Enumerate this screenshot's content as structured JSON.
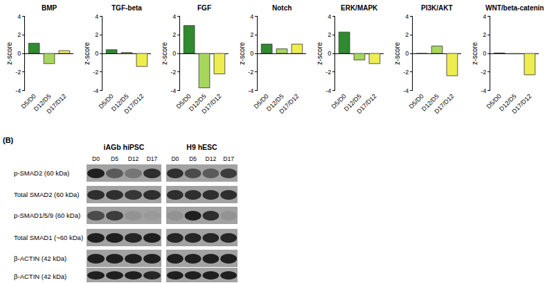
{
  "chart_data": [
    {
      "type": "bar",
      "title": "BMP",
      "ylabel": "z-score",
      "categories": [
        "D5/D0",
        "D12/D5",
        "D17/D12"
      ],
      "values": [
        1.1,
        -1.1,
        0.3
      ],
      "colors": [
        "#2e8b2e",
        "#a6d65c",
        "#eded4f"
      ],
      "ylim": [
        -4,
        4
      ],
      "yticks": [
        -4,
        -2,
        0,
        2,
        4
      ]
    },
    {
      "type": "bar",
      "title": "TGF-beta",
      "ylabel": "z-score",
      "categories": [
        "D5/D0",
        "D12/D5",
        "D17/D12"
      ],
      "values": [
        0.4,
        0.1,
        -1.4
      ],
      "colors": [
        "#2e8b2e",
        "#a6d65c",
        "#eded4f"
      ],
      "ylim": [
        -4,
        4
      ],
      "yticks": [
        -4,
        -2,
        0,
        2,
        4
      ]
    },
    {
      "type": "bar",
      "title": "FGF",
      "ylabel": "z-score",
      "categories": [
        "D5/D0",
        "D12/D5",
        "D17/D12"
      ],
      "values": [
        3.0,
        -3.7,
        -2.2
      ],
      "colors": [
        "#2e8b2e",
        "#a6d65c",
        "#eded4f"
      ],
      "ylim": [
        -4,
        4
      ],
      "yticks": [
        -4,
        -2,
        0,
        2,
        4
      ]
    },
    {
      "type": "bar",
      "title": "Notch",
      "ylabel": "z-score",
      "categories": [
        "D5/D0",
        "D12/D5",
        "D17/D12"
      ],
      "values": [
        1.0,
        0.5,
        1.0
      ],
      "colors": [
        "#2e8b2e",
        "#a6d65c",
        "#eded4f"
      ],
      "ylim": [
        -4,
        4
      ],
      "yticks": [
        -4,
        -2,
        0,
        2,
        4
      ]
    },
    {
      "type": "bar",
      "title": "ERK/MAPK",
      "ylabel": "z-score",
      "categories": [
        "D5/D0",
        "D12/D5",
        "D17/D12"
      ],
      "values": [
        2.3,
        -0.7,
        -1.1
      ],
      "colors": [
        "#2e8b2e",
        "#a6d65c",
        "#eded4f"
      ],
      "ylim": [
        -4,
        4
      ],
      "yticks": [
        -4,
        -2,
        0,
        2,
        4
      ]
    },
    {
      "type": "bar",
      "title": "PI3K/AKT",
      "ylabel": "z-score",
      "categories": [
        "D5/D0",
        "D12/D5",
        "D17/D12"
      ],
      "values": [
        0,
        0.8,
        -2.4
      ],
      "colors": [
        "#2e8b2e",
        "#a6d65c",
        "#eded4f"
      ],
      "ylim": [
        -4,
        4
      ],
      "yticks": [
        -4,
        -2,
        0,
        2,
        4
      ]
    },
    {
      "type": "bar",
      "title": "WNT/beta-catenin",
      "ylabel": "z-score",
      "categories": [
        "D5/D0",
        "D12/D5",
        "D17/D12"
      ],
      "values": [
        0.05,
        -0.05,
        -2.3
      ],
      "colors": [
        "#2e8b2e",
        "#a6d65c",
        "#eded4f"
      ],
      "ylim": [
        -4,
        4
      ],
      "yticks": [
        -4,
        -2,
        0,
        2,
        4
      ]
    }
  ],
  "blot": {
    "label": "(B)",
    "rows": [
      "p-SMAD2 (60 kDa)",
      "Total SMAD2 (60 kDa)",
      "p-SMAD1/5/9 (60 kDa)",
      "Total SMAD1 (~60 kDa)",
      "β-ACTIN (42 kDa)",
      "β-ACTIN (42 kDa)"
    ],
    "blots": [
      {
        "title": "iAGb hiPSC",
        "lanes": [
          "D0",
          "D5",
          "D12",
          "D17"
        ],
        "bands": [
          [
            0.9,
            0.5,
            0.3,
            0.8
          ],
          [
            0.8,
            0.8,
            0.75,
            0.8
          ],
          [
            0.6,
            0.7,
            0.1,
            0.05
          ],
          [
            0.9,
            0.9,
            0.85,
            0.9
          ],
          [
            0.9,
            0.9,
            0.9,
            0.9
          ],
          [
            0.9,
            0.9,
            0.9,
            0.85
          ]
        ]
      },
      {
        "title": "H9 hESC",
        "lanes": [
          "D0",
          "D5",
          "D12",
          "D17"
        ],
        "bands": [
          [
            0.8,
            0.6,
            0.5,
            0.7
          ],
          [
            0.8,
            0.8,
            0.8,
            0.8
          ],
          [
            0.1,
            0.9,
            0.8,
            0.1
          ],
          [
            0.85,
            0.85,
            0.85,
            0.85
          ],
          [
            0.9,
            0.9,
            0.9,
            0.9
          ],
          [
            0.9,
            0.9,
            0.9,
            0.9
          ]
        ]
      }
    ]
  }
}
